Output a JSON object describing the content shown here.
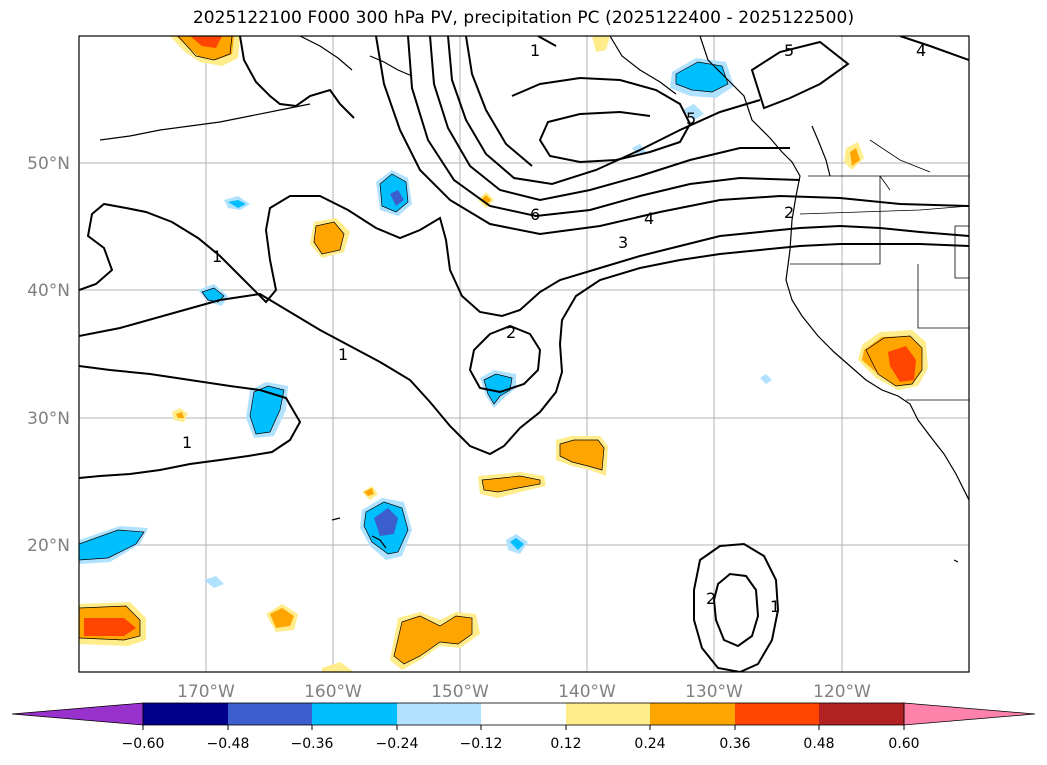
{
  "title": "2025122100 F000 300 hPa PV, precipitation PC (2025122400 - 2025122500)",
  "map": {
    "lat_labels": [
      "50°N",
      "40°N",
      "30°N",
      "20°N"
    ],
    "lon_labels": [
      "170°W",
      "160°W",
      "150°W",
      "140°W",
      "130°W",
      "120°W"
    ],
    "pv_contour_levels": [
      1,
      2,
      3,
      4,
      5,
      6
    ],
    "contour_labels": [
      "1",
      "1",
      "1",
      "1",
      "2",
      "2",
      "2",
      "3",
      "4",
      "4",
      "5",
      "6",
      "1",
      "5"
    ]
  },
  "colorbar": {
    "tick_labels": [
      "−0.60",
      "−0.48",
      "−0.36",
      "−0.24",
      "−0.12",
      "0.12",
      "0.24",
      "0.36",
      "0.48",
      "0.60"
    ],
    "colors": [
      "#9932cc",
      "#00008b",
      "#3a5fcd",
      "#00bfff",
      "#b0e2ff",
      "#ffffff",
      "#ffec8b",
      "#ffa500",
      "#ff4500",
      "#b22222",
      "#ff82ab"
    ]
  }
}
